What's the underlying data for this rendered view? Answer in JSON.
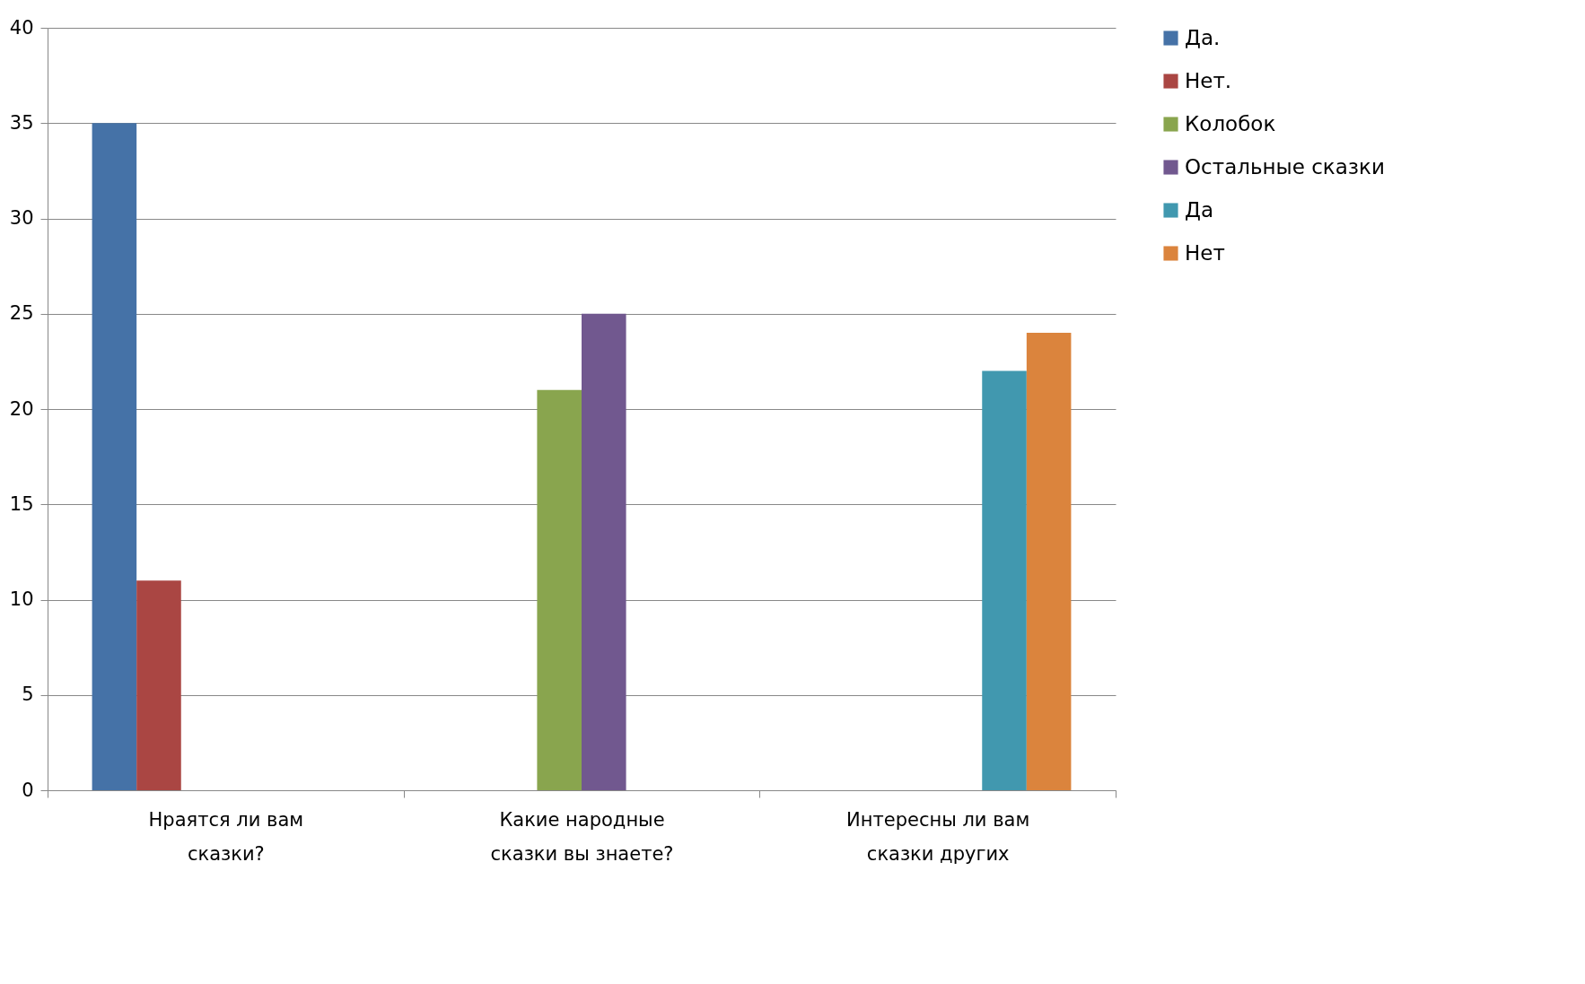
{
  "chart_data": {
    "type": "bar",
    "categories": [
      "Нраятся ли вам сказки?",
      "Какие народные сказки вы знаете?",
      "Интересны ли вам сказки других"
    ],
    "series": [
      {
        "name": "Да.",
        "color": "#4572a7",
        "values": [
          35,
          null,
          null
        ]
      },
      {
        "name": "Нет.",
        "color": "#aa4643",
        "values": [
          11,
          null,
          null
        ]
      },
      {
        "name": "Колобок",
        "color": "#89a54e",
        "values": [
          null,
          21,
          null
        ]
      },
      {
        "name": "Остальные сказки",
        "color": "#71588f",
        "values": [
          null,
          25,
          null
        ]
      },
      {
        "name": "Да",
        "color": "#4198af",
        "values": [
          null,
          null,
          22
        ]
      },
      {
        "name": "Нет",
        "color": "#db843d",
        "values": [
          null,
          null,
          24
        ]
      }
    ],
    "ylim": [
      0,
      40
    ],
    "yticks": [
      0,
      5,
      10,
      15,
      20,
      25,
      30,
      35,
      40
    ],
    "grid": "y",
    "legend": "right"
  }
}
